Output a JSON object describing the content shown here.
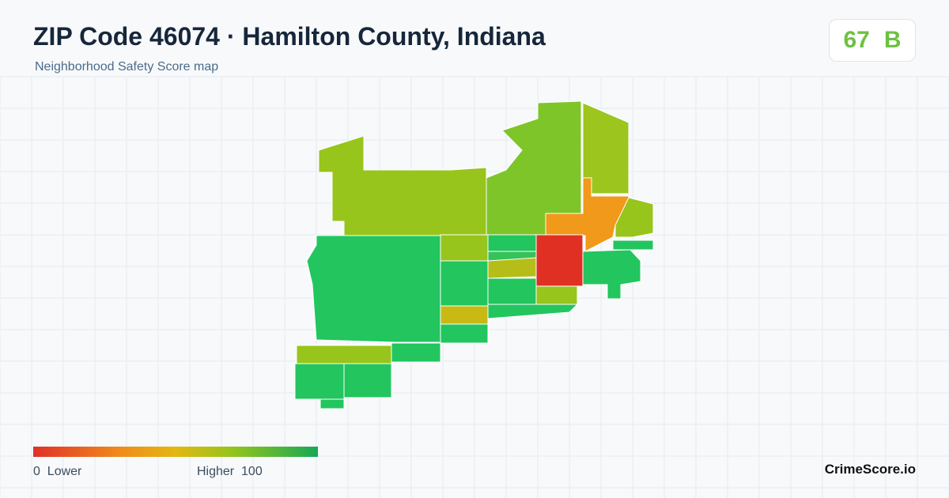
{
  "header": {
    "title": "ZIP Code 46074 · Hamilton County, Indiana",
    "subtitle": "Neighborhood Safety Score map"
  },
  "badge": {
    "score": 67,
    "grade": "B"
  },
  "legend": {
    "min": 0,
    "min_label": "Lower",
    "max_label": "Higher",
    "max": 100
  },
  "footer": {
    "brand": "CrimeScore.io"
  }
}
